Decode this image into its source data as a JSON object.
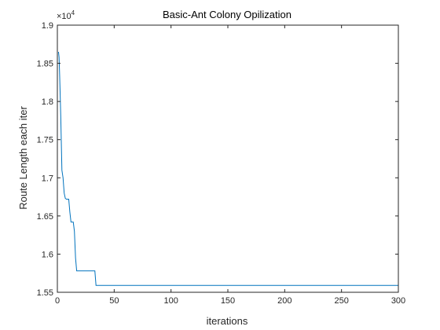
{
  "chart_data": {
    "type": "line",
    "title": "Basic-Ant Colony Opilization",
    "xlabel": "iterations",
    "ylabel": "Route Length each iter",
    "exponent_label": "×10",
    "exponent_power": "4",
    "xlim": [
      0,
      300
    ],
    "ylim": [
      1.55,
      1.9
    ],
    "xticks": [
      0,
      50,
      100,
      150,
      200,
      250,
      300
    ],
    "yticks": [
      1.55,
      1.6,
      1.65,
      1.7,
      1.75,
      1.8,
      1.85,
      1.9
    ],
    "ytick_labels": [
      "1.55",
      "1.6",
      "1.65",
      "1.7",
      "1.75",
      "1.8",
      "1.85",
      "1.9"
    ],
    "grid": false,
    "line_color": "#0072BD",
    "series": [
      {
        "x": [
          1,
          1.5,
          2,
          2.5,
          3,
          3.5,
          4,
          5,
          6,
          7,
          8,
          9,
          10,
          11,
          12,
          13,
          14,
          15,
          16,
          17,
          18,
          30,
          33,
          34,
          300
        ],
        "y": [
          1.865,
          1.858,
          1.835,
          1.808,
          1.78,
          1.745,
          1.71,
          1.7,
          1.68,
          1.673,
          1.672,
          1.672,
          1.672,
          1.655,
          1.642,
          1.642,
          1.642,
          1.63,
          1.595,
          1.578,
          1.578,
          1.578,
          1.578,
          1.559,
          1.559
        ]
      }
    ]
  }
}
